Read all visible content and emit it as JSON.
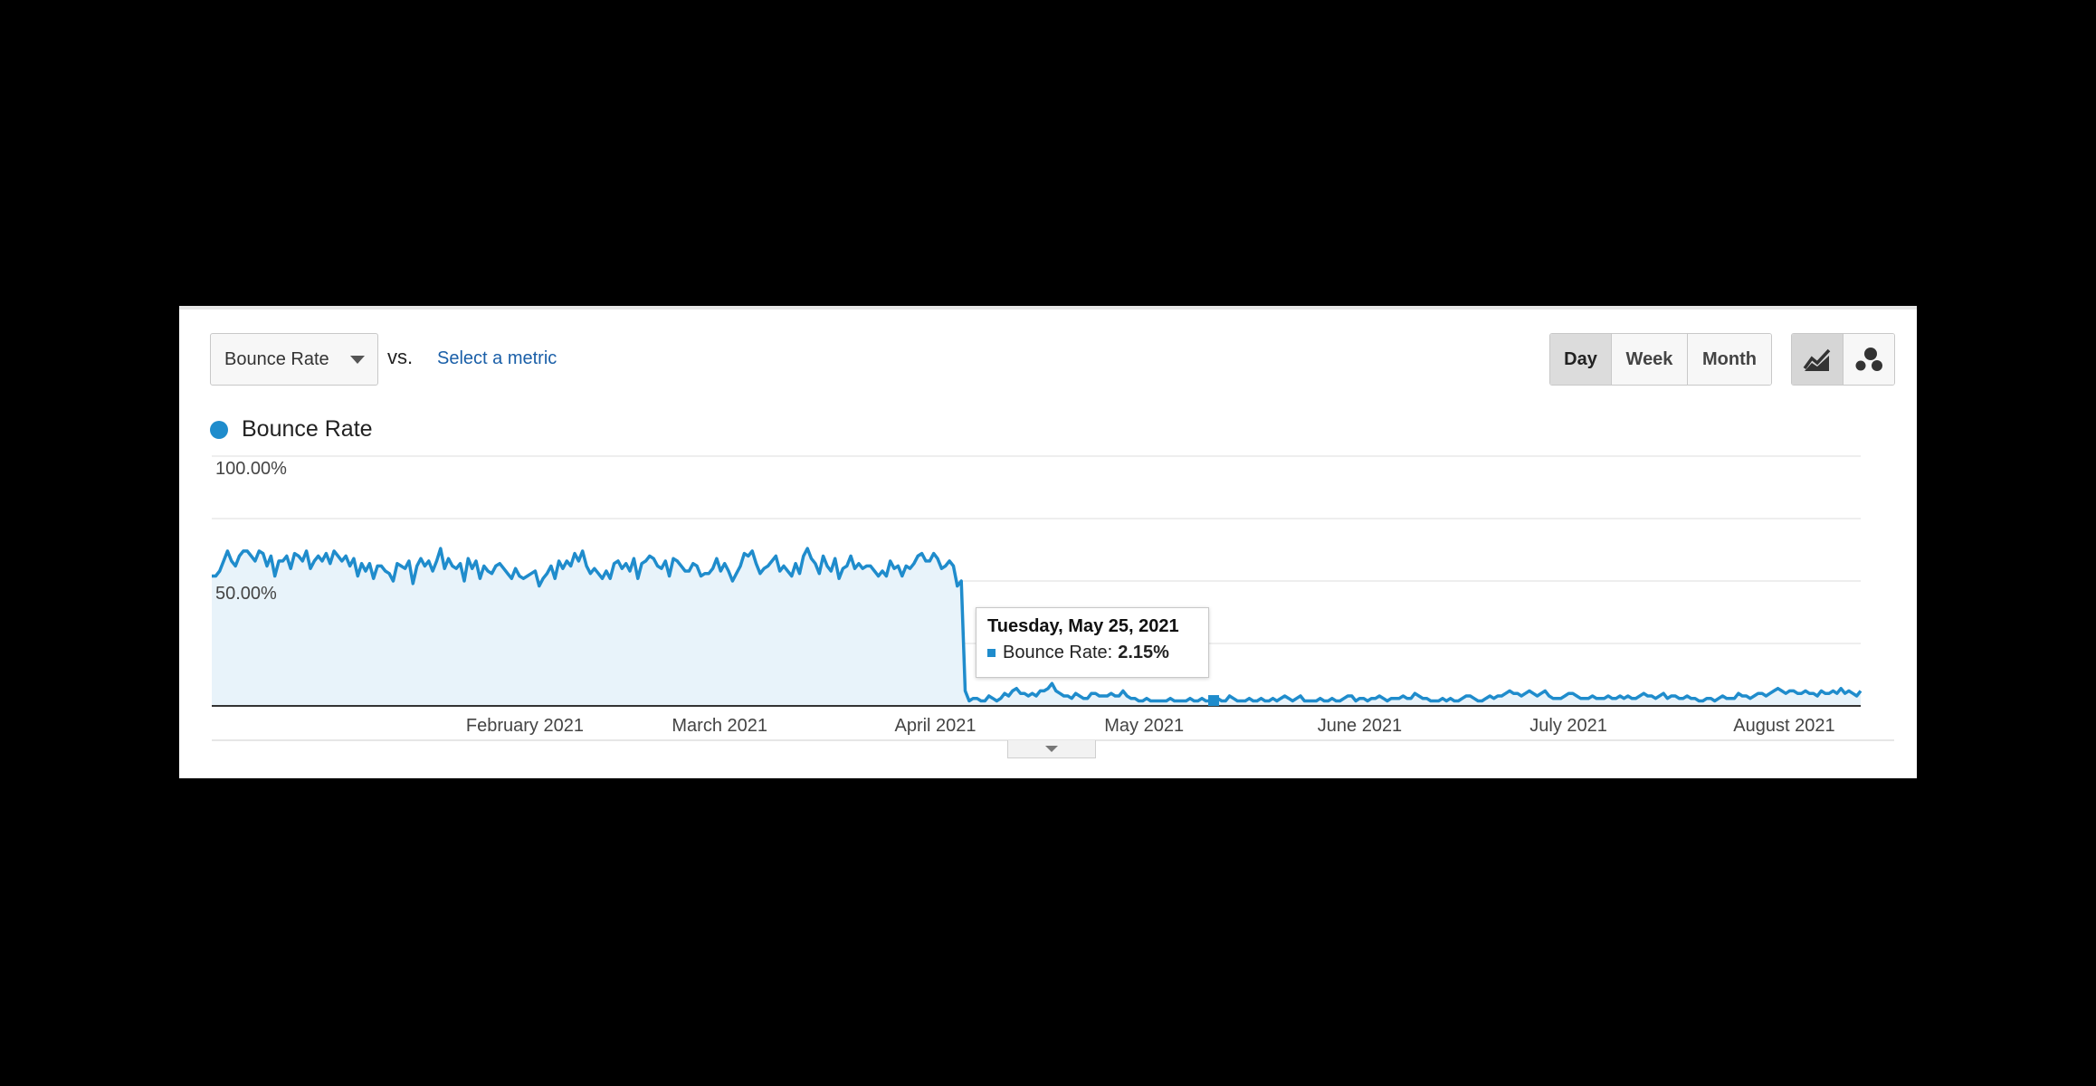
{
  "controls": {
    "metric_select": "Bounce Rate",
    "vs_label": "vs.",
    "select_metric_link": "Select a metric",
    "period_buttons": [
      "Day",
      "Week",
      "Month"
    ],
    "active_period": "Day",
    "view_icons": [
      "line-chart-icon",
      "motion-chart-icon"
    ]
  },
  "legend": {
    "label": "Bounce Rate",
    "color": "#1f8ccc"
  },
  "tooltip": {
    "date": "Tuesday, May 25, 2021",
    "metric": "Bounce Rate:",
    "value": "2.15%"
  },
  "chart_data": {
    "type": "area",
    "x_start": "2021-01-01",
    "x_end": "2021-08-26",
    "y_range": [
      0,
      100
    ],
    "y_tick_labels": [
      "100.00%",
      "50.00%"
    ],
    "x_tick_labels": [
      "February 2021",
      "March 2021",
      "April 2021",
      "May 2021",
      "June 2021",
      "July 2021",
      "August 2021"
    ],
    "series": [
      {
        "name": "Bounce Rate",
        "color": "#1f8ccc",
        "values": [
          52,
          52,
          54,
          58,
          62,
          58,
          56,
          60,
          62,
          62,
          60,
          58,
          62,
          61,
          56,
          60,
          52,
          58,
          58,
          60,
          55,
          61,
          60,
          58,
          62,
          55,
          58,
          60,
          58,
          61,
          57,
          62,
          60,
          58,
          60,
          56,
          59,
          52,
          57,
          54,
          57,
          51,
          56,
          56,
          54,
          53,
          50,
          57,
          56,
          55,
          58,
          49,
          56,
          59,
          56,
          58,
          54,
          58,
          63,
          55,
          59,
          56,
          55,
          57,
          50,
          59,
          55,
          58,
          51,
          56,
          54,
          53,
          56,
          57,
          55,
          53,
          51,
          55,
          52,
          51,
          52,
          53,
          54,
          48,
          51,
          53,
          56,
          51,
          58,
          55,
          58,
          56,
          61,
          58,
          62,
          56,
          53,
          55,
          53,
          51,
          54,
          51,
          57,
          58,
          55,
          57,
          54,
          59,
          51,
          57,
          58,
          60,
          59,
          56,
          55,
          58,
          52,
          59,
          58,
          56,
          54,
          54,
          57,
          56,
          52,
          53,
          53,
          55,
          59,
          54,
          57,
          54,
          50,
          53,
          56,
          61,
          60,
          62,
          57,
          53,
          55,
          56,
          58,
          60,
          54,
          56,
          54,
          52,
          57,
          53,
          60,
          63,
          59,
          57,
          53,
          60,
          56,
          54,
          59,
          51,
          55,
          56,
          60,
          55,
          57,
          55,
          56,
          56,
          54,
          52,
          54,
          52,
          58,
          55,
          56,
          52,
          56,
          55,
          57,
          60,
          61,
          58,
          58,
          61,
          59,
          55,
          56,
          58,
          56,
          48,
          50,
          6,
          2,
          3,
          3,
          2,
          2,
          4,
          3,
          2,
          3,
          5,
          4,
          6,
          7,
          5,
          5,
          4,
          5,
          4,
          6,
          6,
          7,
          9,
          6,
          5,
          4,
          4,
          3,
          5,
          4,
          3,
          3,
          5,
          5,
          4,
          4,
          4,
          5,
          4,
          4,
          6,
          4,
          3,
          3,
          2,
          2,
          3,
          2,
          2,
          2,
          2,
          2,
          3,
          2,
          2,
          2,
          2,
          3,
          2,
          2,
          3,
          2,
          2,
          2,
          3,
          2,
          2,
          4,
          3,
          2,
          2,
          2,
          3,
          2,
          2,
          3,
          2,
          2,
          3,
          2,
          3,
          4,
          3,
          2,
          3,
          4,
          2,
          2,
          2,
          2,
          3,
          2,
          2,
          3,
          2,
          2,
          3,
          4,
          4,
          2,
          3,
          3,
          2,
          3,
          3,
          4,
          3,
          2,
          3,
          3,
          3,
          4,
          3,
          3,
          5,
          4,
          3,
          3,
          2,
          2,
          2,
          3,
          2,
          3,
          2,
          2,
          3,
          4,
          4,
          3,
          2,
          2,
          3,
          4,
          3,
          4,
          4,
          5,
          6,
          5,
          5,
          4,
          5,
          6,
          5,
          4,
          5,
          6,
          4,
          3,
          3,
          3,
          4,
          5,
          5,
          4,
          3,
          3,
          3,
          4,
          3,
          3,
          3,
          4,
          3,
          3,
          4,
          3,
          4,
          3,
          3,
          4,
          5,
          4,
          4,
          3,
          4,
          5,
          3,
          4,
          4,
          3,
          3,
          4,
          3,
          3,
          2,
          2,
          3,
          3,
          2,
          3,
          4,
          3,
          3,
          3,
          5,
          4,
          4,
          3,
          4,
          5,
          5,
          4,
          5,
          6,
          7,
          6,
          5,
          6,
          6,
          5,
          5,
          6,
          5,
          5,
          4,
          6,
          5,
          5,
          6,
          5,
          7,
          5,
          6,
          5,
          4,
          6
        ]
      }
    ],
    "highlight": {
      "date": "2021-05-25",
      "value": 2.15
    },
    "grid": true
  }
}
